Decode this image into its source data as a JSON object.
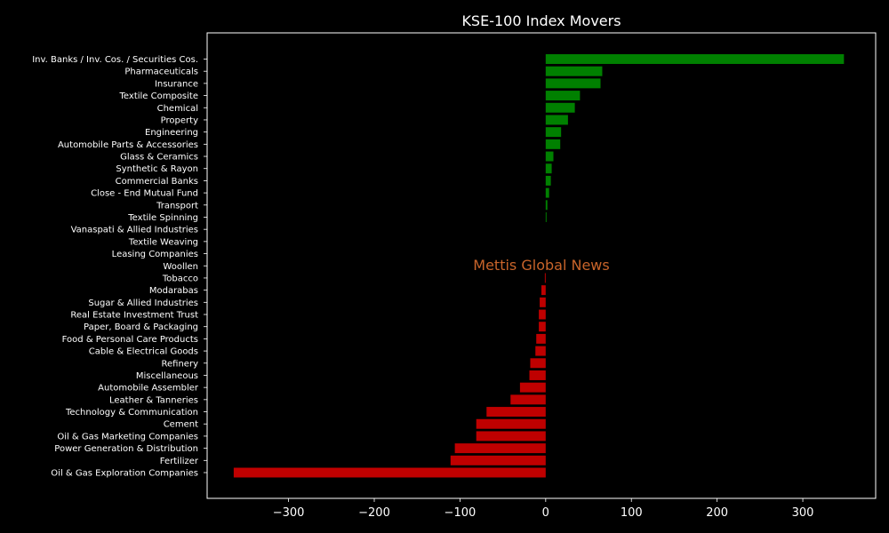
{
  "chart_data": {
    "type": "bar",
    "orientation": "horizontal",
    "title": "KSE-100 Index Movers",
    "xlabel": "",
    "ylabel": "",
    "xlim": [
      -395,
      385
    ],
    "xticks": [
      -300,
      -200,
      -100,
      0,
      100,
      200,
      300
    ],
    "xtick_labels": [
      "−300",
      "−200",
      "−100",
      "0",
      "100",
      "200",
      "300"
    ],
    "grid": false,
    "categories": [
      "Inv. Banks / Inv. Cos. / Securities Cos.",
      "Pharmaceuticals",
      "Insurance",
      "Textile Composite",
      "Chemical",
      "Property",
      "Engineering",
      "Automobile Parts & Accessories",
      "Glass & Ceramics",
      "Synthetic & Rayon",
      "Commercial Banks",
      "Close - End Mutual Fund",
      "Transport",
      "Textile Spinning",
      "Vanaspati & Allied Industries",
      "Textile Weaving",
      "Leasing Companies",
      "Woollen",
      "Tobacco",
      "Modarabas",
      "Sugar & Allied Industries",
      "Real Estate Investment Trust",
      "Paper, Board & Packaging",
      "Food & Personal Care Products",
      "Cable & Electrical Goods",
      "Refinery",
      "Miscellaneous",
      "Automobile Assembler",
      "Leather & Tanneries",
      "Technology & Communication",
      "Cement",
      "Oil & Gas Marketing Companies",
      "Power Generation & Distribution",
      "Fertilizer",
      "Oil & Gas Exploration Companies"
    ],
    "values": [
      348,
      66,
      64,
      40,
      34,
      26,
      18,
      17,
      9,
      7,
      6,
      4,
      2,
      1,
      0,
      0,
      0,
      0,
      -1,
      -5,
      -7,
      -8,
      -8,
      -11,
      -12,
      -18,
      -19,
      -30,
      -41,
      -69,
      -81,
      -81,
      -106,
      -111,
      -364
    ],
    "colors": {
      "positive": "#008000",
      "negative": "#bf0000"
    },
    "watermark": "Mettis Global News",
    "watermark_color": "#c8642a",
    "background": "#000000",
    "text_color": "#ffffff"
  }
}
